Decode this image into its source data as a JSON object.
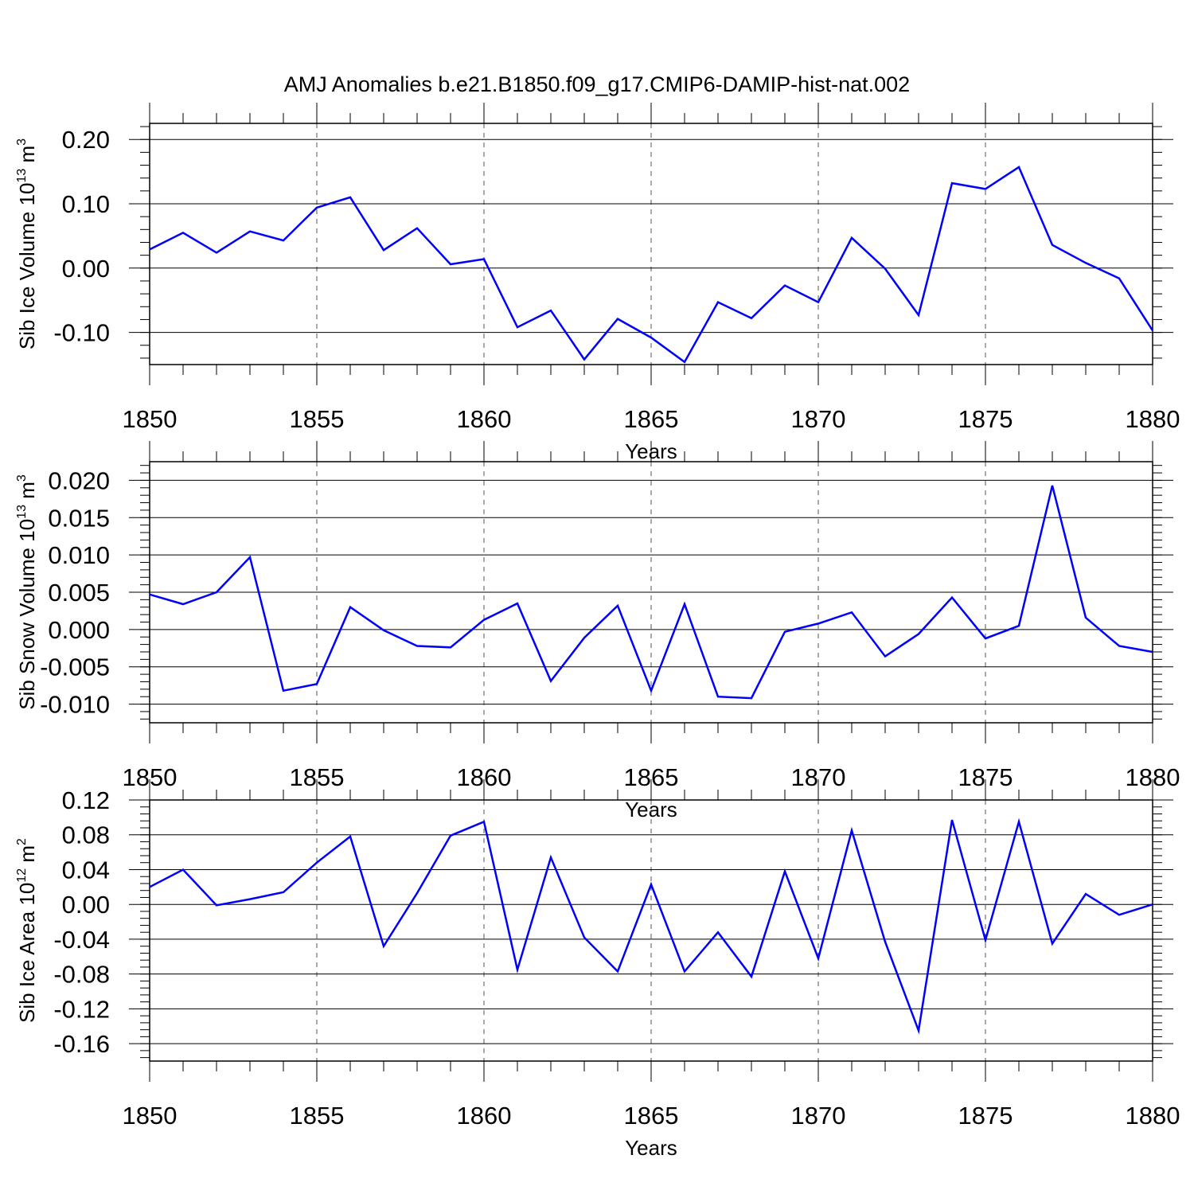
{
  "title": "AMJ Anomalies b.e21.B1850.f09_g17.CMIP6-DAMIP-hist-nat.002",
  "colors": {
    "line": "#0000ff",
    "axis": "#000000",
    "grid": "#555555"
  },
  "chart_data": [
    {
      "type": "line",
      "ylabel": "Sib Ice Volume 10",
      "ylabel_sup1": "13",
      "ylabel_mid": " m",
      "ylabel_sup2": "3",
      "xlabel": "Years",
      "xlim": [
        1850,
        1880
      ],
      "ylim": [
        -0.15,
        0.225
      ],
      "xticks": [
        1850,
        1855,
        1860,
        1865,
        1870,
        1875,
        1880
      ],
      "xtick_labels": [
        "1850",
        "1855",
        "1860",
        "1865",
        "1870",
        "1875",
        "1880"
      ],
      "yticks": [
        0.2,
        0.1,
        0.0,
        -0.1
      ],
      "ytick_labels": [
        "0.20",
        "0.10",
        "0.00",
        "-0.10"
      ],
      "yminor_step": 0.02,
      "x": [
        1850,
        1851,
        1852,
        1853,
        1854,
        1855,
        1856,
        1857,
        1858,
        1859,
        1860,
        1861,
        1862,
        1863,
        1864,
        1865,
        1866,
        1867,
        1868,
        1869,
        1870,
        1871,
        1872,
        1873,
        1874,
        1875,
        1876,
        1877,
        1878,
        1879,
        1880
      ],
      "values": [
        0.029,
        0.055,
        0.024,
        0.057,
        0.043,
        0.094,
        0.11,
        0.028,
        0.062,
        0.006,
        0.014,
        -0.092,
        -0.066,
        -0.142,
        -0.079,
        -0.108,
        -0.146,
        -0.053,
        -0.078,
        -0.027,
        -0.053,
        0.047,
        -0.001,
        -0.073,
        0.132,
        0.123,
        0.157,
        0.036,
        0.008,
        -0.016,
        -0.097
      ]
    },
    {
      "type": "line",
      "ylabel": "Sib Snow Volume 10",
      "ylabel_sup1": "13",
      "ylabel_mid": " m",
      "ylabel_sup2": "3",
      "xlabel": "Years",
      "xlim": [
        1850,
        1880
      ],
      "ylim": [
        -0.0125,
        0.0225
      ],
      "xticks": [
        1850,
        1855,
        1860,
        1865,
        1870,
        1875,
        1880
      ],
      "xtick_labels": [
        "1850",
        "1855",
        "1860",
        "1865",
        "1870",
        "1875",
        "1880"
      ],
      "yticks": [
        0.02,
        0.015,
        0.01,
        0.005,
        0.0,
        -0.005,
        -0.01
      ],
      "ytick_labels": [
        "0.020",
        "0.015",
        "0.010",
        "0.005",
        "0.000",
        "-0.005",
        "-0.010"
      ],
      "yminor_step": 0.001,
      "x": [
        1850,
        1851,
        1852,
        1853,
        1854,
        1855,
        1856,
        1857,
        1858,
        1859,
        1860,
        1861,
        1862,
        1863,
        1864,
        1865,
        1866,
        1867,
        1868,
        1869,
        1870,
        1871,
        1872,
        1873,
        1874,
        1875,
        1876,
        1877,
        1878,
        1879,
        1880
      ],
      "values": [
        0.0047,
        0.0034,
        0.005,
        0.0097,
        -0.0082,
        -0.0073,
        0.003,
        -0.0001,
        -0.0022,
        -0.0024,
        0.0013,
        0.0035,
        -0.0069,
        -0.0011,
        0.0032,
        -0.0082,
        0.0034,
        -0.009,
        -0.0092,
        -0.0003,
        0.0008,
        0.0023,
        -0.0036,
        -0.0006,
        0.0043,
        -0.0012,
        0.0005,
        0.0193,
        0.0016,
        -0.0022,
        -0.003
      ]
    },
    {
      "type": "line",
      "ylabel": "Sib Ice Area 10",
      "ylabel_sup1": "12",
      "ylabel_mid": " m",
      "ylabel_sup2": "2",
      "xlabel": "Years",
      "xlim": [
        1850,
        1880
      ],
      "ylim": [
        -0.18,
        0.12
      ],
      "xticks": [
        1850,
        1855,
        1860,
        1865,
        1870,
        1875,
        1880
      ],
      "xtick_labels": [
        "1850",
        "1855",
        "1860",
        "1865",
        "1870",
        "1875",
        "1880"
      ],
      "yticks": [
        0.12,
        0.08,
        0.04,
        0.0,
        -0.04,
        -0.08,
        -0.12,
        -0.16
      ],
      "ytick_labels": [
        "0.12",
        "0.08",
        "0.04",
        "0.00",
        "-0.04",
        "-0.08",
        "-0.12",
        "-0.16"
      ],
      "yminor_step": 0.008,
      "x": [
        1850,
        1851,
        1852,
        1853,
        1854,
        1855,
        1856,
        1857,
        1858,
        1859,
        1860,
        1861,
        1862,
        1863,
        1864,
        1865,
        1866,
        1867,
        1868,
        1869,
        1870,
        1871,
        1872,
        1873,
        1874,
        1875,
        1876,
        1877,
        1878,
        1879,
        1880
      ],
      "values": [
        0.02,
        0.04,
        -0.001,
        0.006,
        0.014,
        0.048,
        0.078,
        -0.048,
        0.013,
        0.079,
        0.095,
        -0.075,
        0.054,
        -0.038,
        -0.077,
        0.023,
        -0.077,
        -0.032,
        -0.083,
        0.038,
        -0.062,
        0.085,
        -0.043,
        -0.145,
        0.097,
        -0.041,
        0.095,
        -0.045,
        0.012,
        -0.012,
        0.0
      ]
    }
  ]
}
